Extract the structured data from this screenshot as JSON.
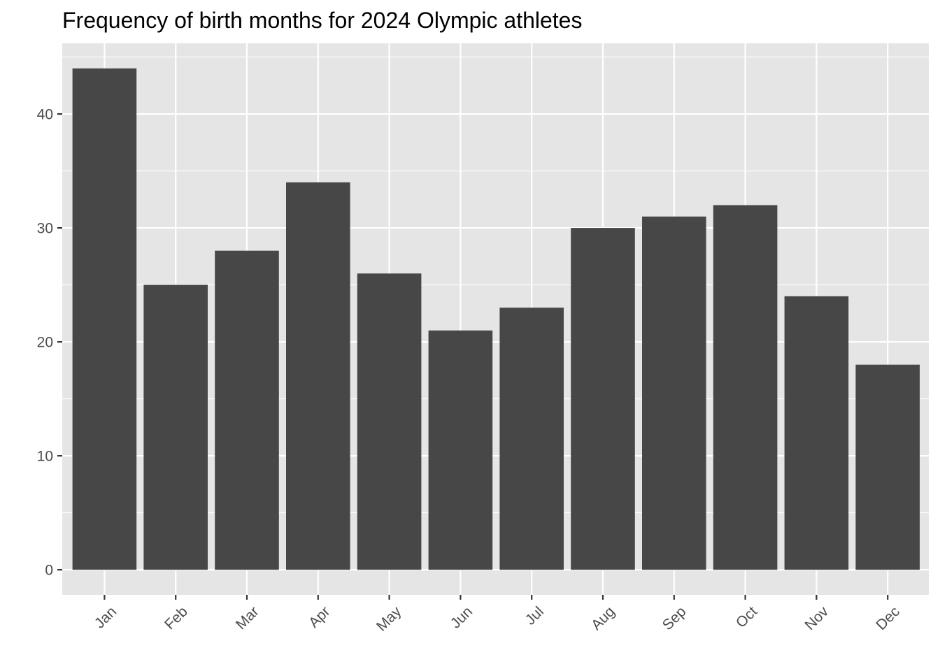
{
  "chart_data": {
    "type": "bar",
    "title": "Frequency of birth months for 2024 Olympic athletes",
    "xlabel": "",
    "ylabel": "",
    "categories": [
      "Jan",
      "Feb",
      "Mar",
      "Apr",
      "May",
      "Jun",
      "Jul",
      "Aug",
      "Sep",
      "Oct",
      "Nov",
      "Dec"
    ],
    "values": [
      44,
      25,
      28,
      34,
      26,
      21,
      23,
      30,
      31,
      32,
      24,
      18
    ],
    "ylim": [
      -2.2,
      46.2
    ],
    "yticks": [
      0,
      10,
      20,
      30,
      40
    ],
    "yminor": [
      5,
      15,
      25,
      35,
      45
    ],
    "grid": true,
    "colors": {
      "bar": "#474747",
      "panel": "#e5e5e5",
      "grid": "#ffffff",
      "tick_text": "#4d4d4d",
      "tick_mark": "#333333"
    }
  }
}
